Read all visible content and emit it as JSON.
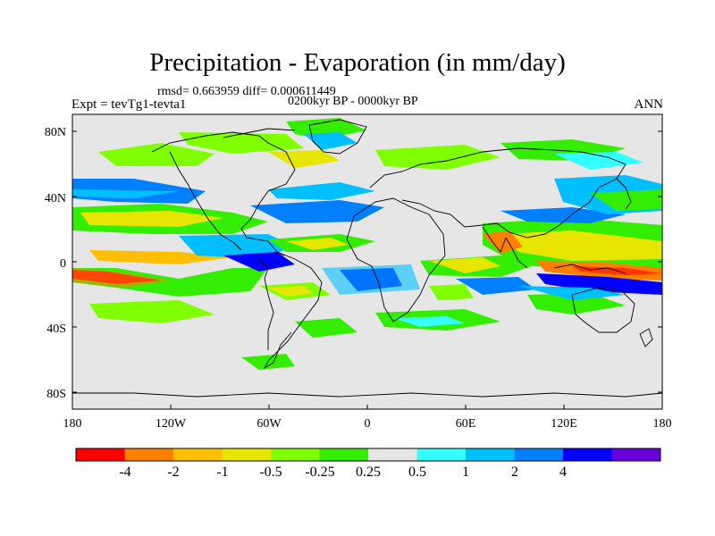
{
  "title": "Precipitation - Evaporation (in mm/day)",
  "stats": "rmsd= 0.663959 diff= 0.000611449",
  "period": "0200kyr BP - 0000kyr BP",
  "experiment": "Expt = tevTg1-tevta1",
  "season": "ANN",
  "map": {
    "projection": "cylindrical-equidistant",
    "lon_range": [
      -180,
      180
    ],
    "lat_range": [
      -90,
      90
    ],
    "x_ticks": [
      {
        "lon": -180,
        "label": "180"
      },
      {
        "lon": -120,
        "label": "120W"
      },
      {
        "lon": -60,
        "label": "60W"
      },
      {
        "lon": 0,
        "label": "0"
      },
      {
        "lon": 60,
        "label": "60E"
      },
      {
        "lon": 120,
        "label": "120E"
      },
      {
        "lon": 180,
        "label": "180"
      }
    ],
    "y_ticks": [
      {
        "lat": 80,
        "label": "80N"
      },
      {
        "lat": 40,
        "label": "40N"
      },
      {
        "lat": 0,
        "label": "0"
      },
      {
        "lat": -40,
        "label": "40S"
      },
      {
        "lat": -80,
        "label": "80S"
      }
    ],
    "background_color": "#e6e6e6",
    "coastline_color": "#000000"
  },
  "colorbar": {
    "colors": [
      "#ff0000",
      "#ff8000",
      "#ffbf00",
      "#e6e600",
      "#80ff00",
      "#33ee00",
      "#e6e6e6",
      "#33ffff",
      "#00bfff",
      "#0080ff",
      "#0000ff",
      "#6a00d9"
    ],
    "labels": [
      "-4",
      "-2",
      "-1",
      "-0.5",
      "-0.25",
      "0.25",
      "0.5",
      "1",
      "2",
      "4"
    ],
    "levels": [
      -4,
      -2,
      -1,
      -0.5,
      -0.25,
      0.25,
      0.5,
      1,
      2,
      4
    ]
  }
}
